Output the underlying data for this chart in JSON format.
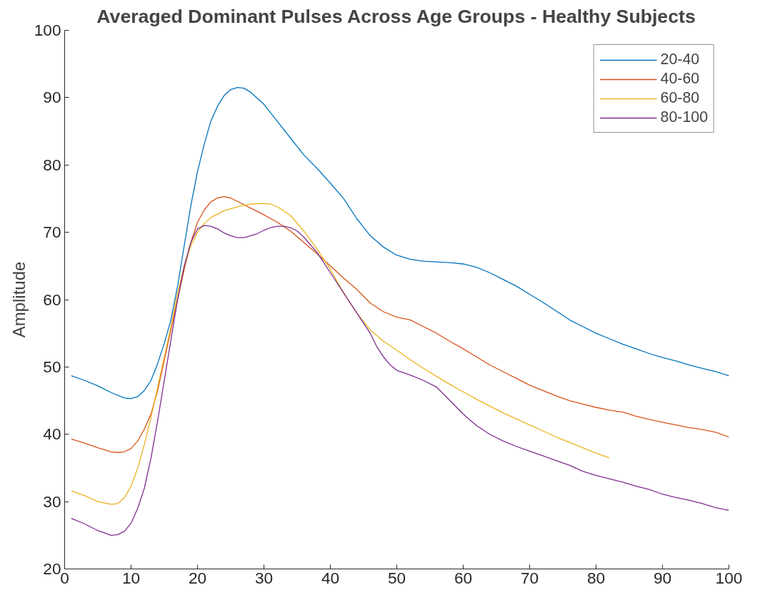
{
  "chart_data": {
    "type": "line",
    "title": "Averaged Dominant Pulses Across Age Groups - Healthy Subjects",
    "ylabel": "Amplitude",
    "xlim": [
      0,
      100
    ],
    "ylim": [
      20,
      100
    ],
    "xticks": [
      0,
      10,
      20,
      30,
      40,
      50,
      60,
      70,
      80,
      90,
      100
    ],
    "yticks": [
      20,
      30,
      40,
      50,
      60,
      70,
      80,
      90,
      100
    ],
    "grid": false,
    "legend": "top right",
    "marker": "none",
    "line_style": "solid",
    "series": [
      {
        "name": "20-40",
        "color": "#0072bd",
        "x": [
          1,
          3,
          5,
          7,
          9,
          10,
          11,
          12,
          13,
          14,
          15,
          16,
          17,
          18,
          19,
          20,
          21,
          22,
          23,
          24,
          25,
          26,
          27,
          28,
          30,
          32,
          34,
          36,
          38,
          40,
          42,
          44,
          46,
          48,
          50,
          52,
          54,
          56,
          58,
          60,
          62,
          64,
          66,
          68,
          70,
          72,
          74,
          76,
          78,
          80,
          82,
          84,
          86,
          88,
          90,
          92,
          94,
          96,
          98,
          100
        ],
        "values": [
          48.7,
          48.0,
          47.2,
          46.2,
          45.4,
          45.3,
          45.6,
          46.5,
          48,
          50.5,
          53.5,
          57,
          62,
          68,
          74,
          79,
          83,
          86.5,
          88.7,
          90.3,
          91.2,
          91.5,
          91.4,
          90.8,
          89,
          86.5,
          84,
          81.5,
          79.5,
          77.3,
          75,
          72,
          69.5,
          67.8,
          66.6,
          66,
          65.7,
          65.6,
          65.5,
          65.3,
          64.8,
          64,
          63,
          62,
          60.8,
          59.6,
          58.3,
          57,
          56,
          55,
          54.2,
          53.4,
          52.7,
          52,
          51.4,
          50.9,
          50.3,
          49.8,
          49.3,
          48.7
        ]
      },
      {
        "name": "40-60",
        "color": "#d95319",
        "x": [
          1,
          3,
          5,
          7,
          8,
          9,
          10,
          11,
          12,
          13,
          14,
          15,
          16,
          17,
          18,
          19,
          20,
          21,
          22,
          23,
          24,
          25,
          26,
          28,
          30,
          32,
          34,
          36,
          38,
          40,
          42,
          44,
          46,
          48,
          50,
          52,
          54,
          56,
          58,
          60,
          62,
          64,
          66,
          68,
          70,
          72,
          74,
          76,
          78,
          80,
          82,
          84,
          86,
          88,
          90,
          92,
          94,
          96,
          98,
          100
        ],
        "values": [
          39.3,
          38.7,
          38,
          37.4,
          37.3,
          37.4,
          37.9,
          39,
          40.8,
          43,
          46.5,
          51,
          55.5,
          60,
          64.5,
          68.5,
          71.5,
          73.3,
          74.5,
          75.1,
          75.3,
          75.1,
          74.6,
          73.6,
          72.6,
          71.5,
          70.2,
          68.5,
          66.8,
          65,
          63.2,
          61.5,
          59.5,
          58.2,
          57.4,
          57,
          56,
          55,
          53.8,
          52.7,
          51.5,
          50.3,
          49.3,
          48.3,
          47.3,
          46.5,
          45.7,
          45,
          44.5,
          44,
          43.6,
          43.3,
          42.7,
          42.2,
          41.8,
          41.4,
          41,
          40.7,
          40.3,
          39.6
        ]
      },
      {
        "name": "60-80",
        "color": "#edb120",
        "x": [
          1,
          3,
          5,
          7,
          8,
          9,
          10,
          11,
          12,
          13,
          14,
          15,
          16,
          17,
          18,
          19,
          20,
          21,
          22,
          24,
          26,
          28,
          30,
          31,
          32,
          34,
          36,
          38,
          40,
          42,
          44,
          46,
          48,
          50,
          52,
          54,
          56,
          58,
          60,
          62,
          64,
          66,
          68,
          70,
          72,
          74,
          76,
          78,
          80,
          82
        ],
        "values": [
          31.6,
          30.9,
          30,
          29.6,
          29.7,
          30.6,
          32.3,
          35,
          38.5,
          42.5,
          47,
          51.5,
          56,
          61,
          65,
          68,
          70,
          71.3,
          72.2,
          73.2,
          73.8,
          74.2,
          74.3,
          74.2,
          73.8,
          72.5,
          70.2,
          67.5,
          64.5,
          61,
          58,
          55.5,
          53.8,
          52.5,
          51.1,
          49.8,
          48.6,
          47.4,
          46.3,
          45.2,
          44.2,
          43.2,
          42.3,
          41.4,
          40.5,
          39.6,
          38.8,
          38,
          37.2,
          36.5
        ]
      },
      {
        "name": "80-100",
        "color": "#7e2f8e",
        "x": [
          1,
          3,
          5,
          7,
          8,
          9,
          10,
          11,
          12,
          13,
          14,
          15,
          16,
          17,
          18,
          19,
          20,
          21,
          22,
          23,
          24,
          25,
          26,
          27,
          28,
          29,
          30,
          31,
          32,
          33,
          34,
          35,
          36,
          38,
          40,
          42,
          44,
          46,
          47,
          48,
          49,
          50,
          52,
          54,
          56,
          58,
          60,
          62,
          64,
          66,
          68,
          70,
          72,
          74,
          76,
          78,
          80,
          82,
          84,
          86,
          88,
          90,
          92,
          94,
          96,
          98,
          100
        ],
        "values": [
          27.5,
          26.7,
          25.7,
          25,
          25.1,
          25.6,
          26.8,
          29,
          32,
          36.5,
          42,
          48,
          54,
          60,
          65,
          68.5,
          70.5,
          71,
          70.9,
          70.5,
          69.9,
          69.5,
          69.2,
          69.2,
          69.5,
          69.8,
          70.3,
          70.7,
          70.9,
          70.9,
          70.7,
          70.2,
          69.3,
          67,
          64,
          61,
          58,
          55,
          53,
          51.5,
          50.3,
          49.5,
          48.8,
          48,
          47,
          45,
          43,
          41.3,
          40,
          39,
          38.2,
          37.5,
          36.8,
          36.1,
          35.4,
          34.5,
          33.9,
          33.4,
          32.9,
          32.3,
          31.8,
          31.1,
          30.6,
          30.2,
          29.7,
          29.1,
          28.7
        ]
      }
    ]
  }
}
